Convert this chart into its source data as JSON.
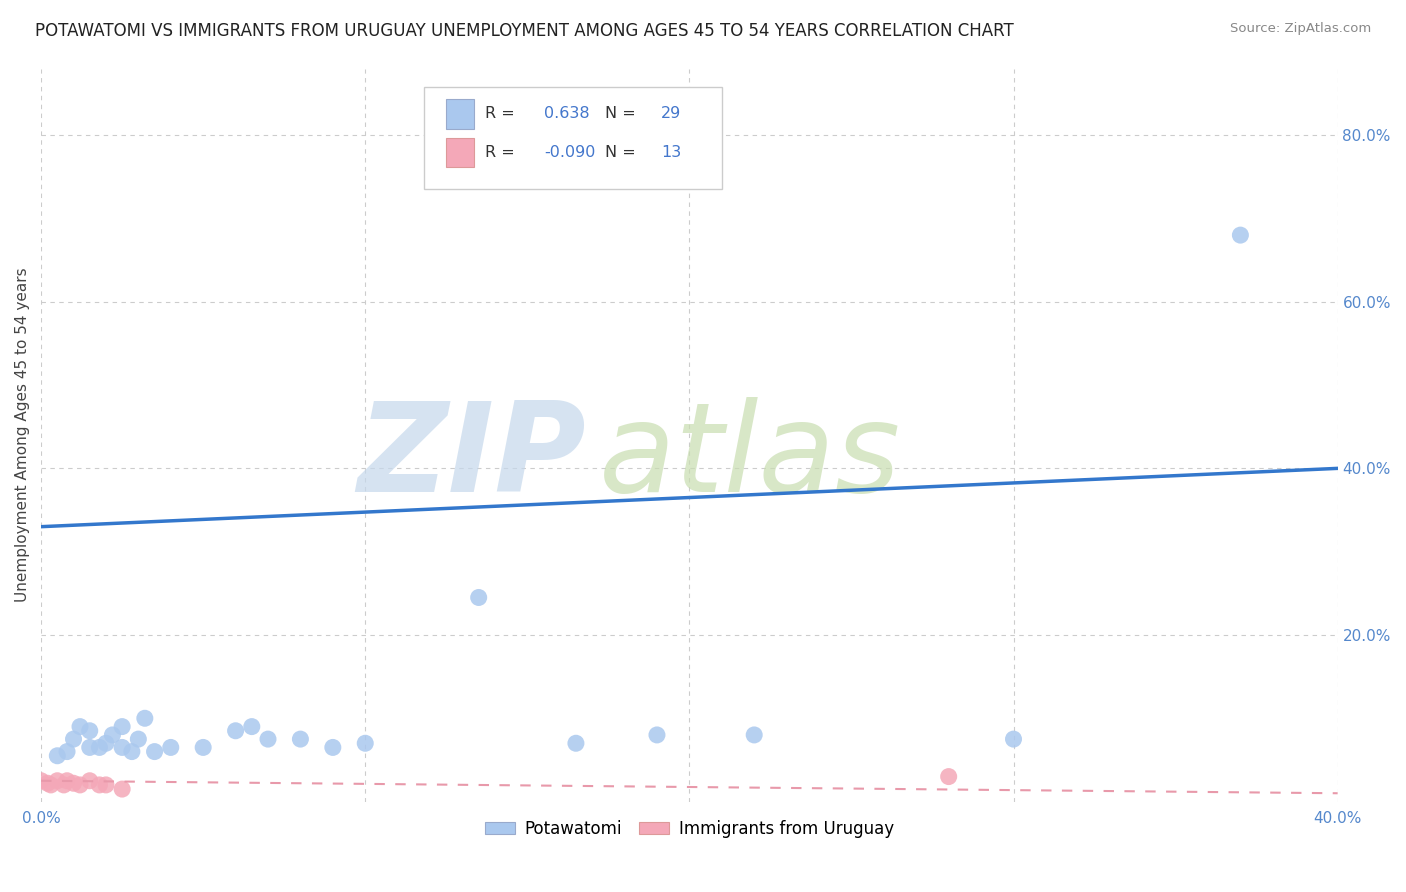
{
  "title": "POTAWATOMI VS IMMIGRANTS FROM URUGUAY UNEMPLOYMENT AMONG AGES 45 TO 54 YEARS CORRELATION CHART",
  "source": "Source: ZipAtlas.com",
  "ylabel": "Unemployment Among Ages 45 to 54 years",
  "xlim": [
    0.0,
    0.4
  ],
  "ylim": [
    0.0,
    0.88
  ],
  "xticks": [
    0.0,
    0.1,
    0.2,
    0.3,
    0.4
  ],
  "yticks": [
    0.2,
    0.4,
    0.6,
    0.8
  ],
  "blue_R": 0.638,
  "blue_N": 29,
  "pink_R": -0.09,
  "pink_N": 13,
  "blue_color": "#aac8ee",
  "pink_color": "#f4a8b8",
  "blue_line_color": "#3377cc",
  "pink_line_color": "#e899aa",
  "watermark_zip": "ZIP",
  "watermark_atlas": "atlas",
  "watermark_color_zip": "#c5d8ec",
  "watermark_color_atlas": "#c8ddb0",
  "title_fontsize": 12,
  "axis_label_fontsize": 11,
  "tick_fontsize": 11,
  "blue_scatter_x": [
    0.005,
    0.008,
    0.01,
    0.012,
    0.015,
    0.015,
    0.018,
    0.02,
    0.022,
    0.025,
    0.025,
    0.028,
    0.03,
    0.032,
    0.035,
    0.04,
    0.05,
    0.06,
    0.065,
    0.07,
    0.08,
    0.09,
    0.1,
    0.135,
    0.165,
    0.19,
    0.22,
    0.3,
    0.37
  ],
  "blue_scatter_y": [
    0.055,
    0.06,
    0.075,
    0.09,
    0.065,
    0.085,
    0.065,
    0.07,
    0.08,
    0.065,
    0.09,
    0.06,
    0.075,
    0.1,
    0.06,
    0.065,
    0.065,
    0.085,
    0.09,
    0.075,
    0.075,
    0.065,
    0.07,
    0.245,
    0.07,
    0.08,
    0.08,
    0.075,
    0.68
  ],
  "pink_scatter_x": [
    0.0,
    0.002,
    0.003,
    0.005,
    0.007,
    0.008,
    0.01,
    0.012,
    0.015,
    0.018,
    0.02,
    0.025,
    0.28
  ],
  "pink_scatter_y": [
    0.025,
    0.022,
    0.02,
    0.025,
    0.02,
    0.025,
    0.022,
    0.02,
    0.025,
    0.02,
    0.02,
    0.015,
    0.03
  ],
  "blue_line_x0": 0.0,
  "blue_line_y0": 0.33,
  "blue_line_x1": 0.4,
  "blue_line_y1": 0.4,
  "pink_line_x0": 0.0,
  "pink_line_y0": 0.025,
  "pink_line_x1": 0.4,
  "pink_line_y1": 0.01
}
